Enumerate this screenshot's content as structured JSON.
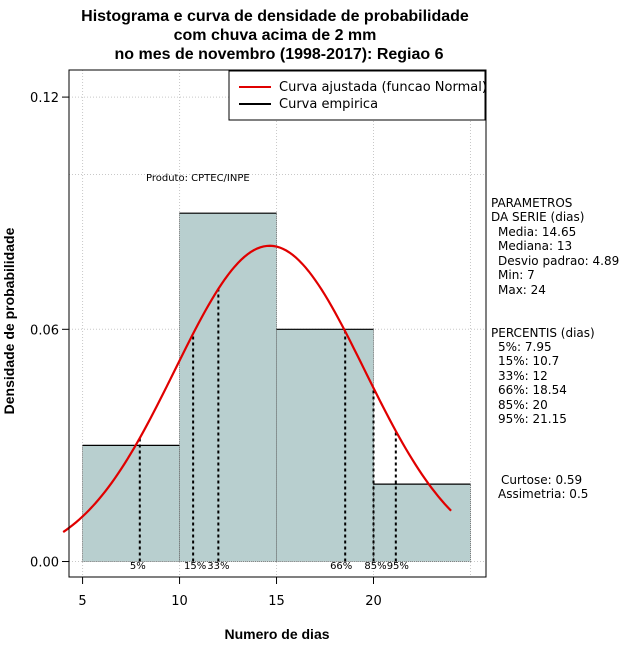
{
  "chart_data": {
    "type": "histogram",
    "title_lines": [
      "Histograma e curva de densidade de probabilidade",
      "com chuva acima de 2 mm",
      "no mes de novembro (1998-2017): Regiao 6"
    ],
    "xlabel": "Numero de dias",
    "ylabel": "Densidade de probabilidade",
    "xlim": [
      4.3,
      25.8
    ],
    "ylim": [
      -0.004,
      0.127
    ],
    "x_ticks": [
      5,
      10,
      15,
      20
    ],
    "y_ticks": [
      0.0,
      0.06,
      0.12
    ],
    "y_tick_labels": [
      "0.00",
      "0.06",
      "0.12"
    ],
    "grid_x": [
      5,
      10,
      15,
      20,
      25
    ],
    "grid_y": [
      0.0,
      0.06,
      0.1,
      0.12
    ],
    "bars": [
      {
        "x0": 5,
        "x1": 10,
        "density": 0.03
      },
      {
        "x0": 10,
        "x1": 15,
        "density": 0.09
      },
      {
        "x0": 15,
        "x1": 20,
        "density": 0.06
      },
      {
        "x0": 20,
        "x1": 25,
        "density": 0.02
      }
    ],
    "bar_color": "#b8cfcf",
    "normal_curve": {
      "mean": 14.65,
      "sd": 4.89,
      "x_from": 4.0,
      "x_to": 24.0,
      "color": "#e00000"
    },
    "percentile_lines": [
      {
        "label": "5%",
        "x": 7.95
      },
      {
        "label": "15%",
        "x": 10.7
      },
      {
        "label": "33%",
        "x": 12
      },
      {
        "label": "66%",
        "x": 18.54
      },
      {
        "label": "85%",
        "x": 20
      },
      {
        "label": "95%",
        "x": 21.15
      }
    ],
    "legend": [
      {
        "label": "Curva ajustada (funcao Normal)",
        "color": "#e00000"
      },
      {
        "label": "Curva empirica",
        "color": "#000000"
      }
    ],
    "product_label": "Produto: CPTEC/INPE",
    "params_header": [
      "PARAMETROS",
      "DA SERIE (dias)"
    ],
    "params": [
      "Media: 14.65",
      "Mediana: 13",
      "Desvio padrao: 4.89",
      "Min: 7",
      "Max: 24"
    ],
    "percentis_header": "PERCENTIS (dias)",
    "percentis": [
      "5%: 7.95",
      "15%: 10.7",
      "33%: 12",
      "66%: 18.54",
      "85%: 20",
      "95%: 21.15"
    ],
    "curtose": "Curtose: 0.59",
    "assimetria": "Assimetria: 0.5"
  }
}
